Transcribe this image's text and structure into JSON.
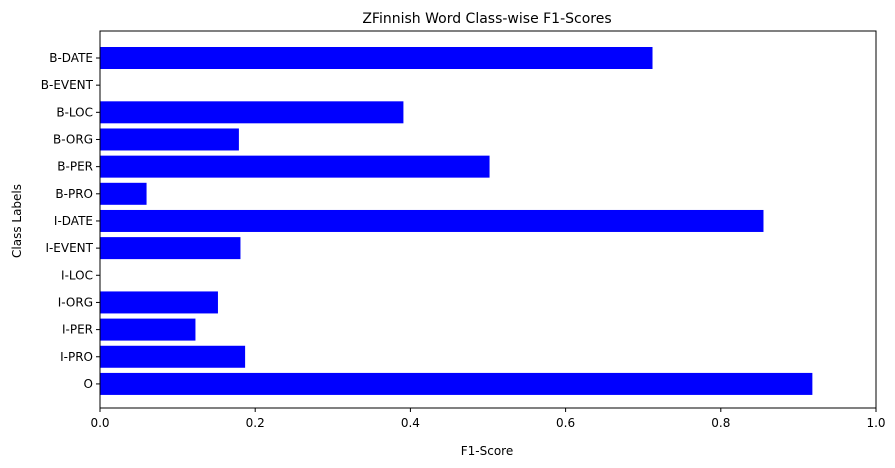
{
  "chart_data": {
    "type": "bar",
    "orientation": "horizontal",
    "title": "ZFinnish Word Class-wise F1-Scores",
    "xlabel": "F1-Score",
    "ylabel": "Class Labels",
    "categories": [
      "B-DATE",
      "B-EVENT",
      "B-LOC",
      "B-ORG",
      "B-PER",
      "B-PRO",
      "I-DATE",
      "I-EVENT",
      "I-LOC",
      "I-ORG",
      "I-PER",
      "I-PRO",
      "O"
    ],
    "values": [
      0.712,
      0.0,
      0.391,
      0.179,
      0.502,
      0.06,
      0.855,
      0.181,
      0.0,
      0.152,
      0.123,
      0.187,
      0.918
    ],
    "xlim": [
      0,
      1
    ],
    "xticks": [
      "0.0",
      "0.2",
      "0.4",
      "0.6",
      "0.8",
      "1.0"
    ],
    "xtick_values": [
      0,
      0.2,
      0.4,
      0.6,
      0.8,
      1.0
    ],
    "grid": false,
    "bar_color": "#0000ff"
  }
}
